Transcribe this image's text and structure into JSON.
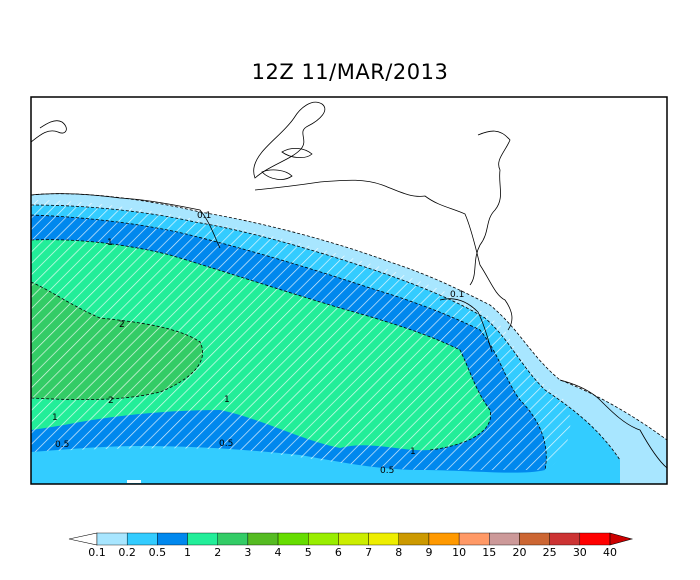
{
  "title": "12Z 11/MAR/2013",
  "contour_labels": [
    "0.1",
    "0.2",
    "0.5",
    "1",
    "2"
  ],
  "legend": {
    "ticks": [
      "0.1",
      "0.2",
      "0.5",
      "1",
      "2",
      "3",
      "4",
      "5",
      "6",
      "7",
      "8",
      "9",
      "10",
      "15",
      "20",
      "25",
      "30",
      "40"
    ],
    "colors": [
      "#ffffff",
      "#a8e6ff",
      "#33ccff",
      "#0088ee",
      "#22ee99",
      "#33cc66",
      "#55bb22",
      "#66dd00",
      "#99ee00",
      "#ccee00",
      "#eeee00",
      "#cc9900",
      "#ff9900",
      "#ff9966",
      "#cc9999",
      "#cc6633",
      "#cc3333",
      "#ff0000",
      "#cc0000"
    ]
  },
  "colors": {
    "lightblue": "#a8e6ff",
    "cyan": "#33ccff",
    "blue": "#0088ee",
    "green": "#22ee99",
    "darkgreen": "#33cc66"
  }
}
